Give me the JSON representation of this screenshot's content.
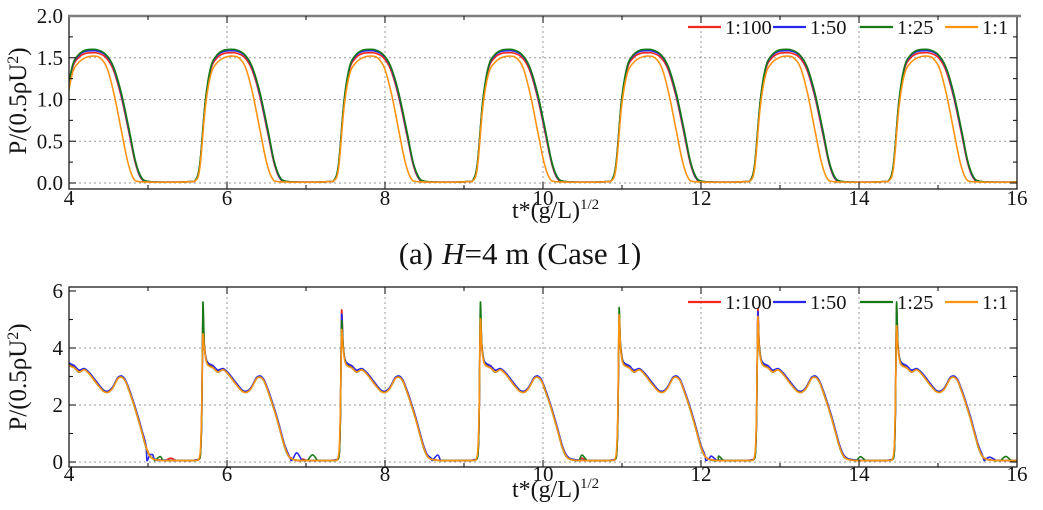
{
  "figure": {
    "caption": {
      "prefix": "(a)",
      "italic": "H",
      "suffix": "=4 m (Case 1)"
    }
  },
  "chart_data": [
    {
      "id": "top-panel",
      "type": "line",
      "title": "",
      "xlabel_base": "t*(g/L)",
      "xlabel_sup": "1/2",
      "ylabel_base": "P/(0.5ρU",
      "ylabel_sup": "2",
      "ylabel_close": ")",
      "xlim": [
        4,
        16
      ],
      "ylim": [
        0,
        2
      ],
      "x_ticks": [
        4,
        6,
        8,
        10,
        12,
        14,
        16
      ],
      "x_tick_labels": [
        "4",
        "6",
        "8",
        "10",
        "12",
        "14",
        "16"
      ],
      "y_ticks": [
        0,
        0.5,
        1,
        1.5,
        2
      ],
      "y_tick_labels": [
        "0.0",
        "0.5",
        "1.0",
        "1.5",
        "2.0"
      ],
      "x_minor_step": 1,
      "y_minor_step": 0.25,
      "grid_x": [
        6,
        8,
        10,
        12,
        14
      ],
      "grid_y": [
        0,
        0.5,
        1,
        1.5
      ],
      "grid_on": true,
      "legend_position": "top-right",
      "wave": {
        "period": 1.756,
        "t_ref": 5.695
      },
      "series": [
        {
          "name": "1:100",
          "color": "#f5261d",
          "keypoints": [
            [
              -0.105,
              0.02
            ],
            [
              -0.04,
              0.2
            ],
            [
              0.03,
              0.95
            ],
            [
              0.1,
              1.36
            ],
            [
              0.18,
              1.5
            ],
            [
              0.28,
              1.555
            ],
            [
              0.4,
              1.56
            ],
            [
              0.52,
              1.51
            ],
            [
              0.62,
              1.36
            ],
            [
              0.72,
              1.04
            ],
            [
              0.82,
              0.6
            ],
            [
              0.9,
              0.24
            ],
            [
              0.97,
              0.06
            ],
            [
              1.05,
              0.015
            ],
            [
              1.25,
              0.01
            ],
            [
              1.45,
              0.01
            ],
            [
              1.58,
              0.015
            ]
          ]
        },
        {
          "name": "1:50",
          "color": "#2727ee",
          "keypoints": [
            [
              -0.105,
              0.02
            ],
            [
              -0.04,
              0.21
            ],
            [
              0.03,
              0.97
            ],
            [
              0.1,
              1.38
            ],
            [
              0.18,
              1.525
            ],
            [
              0.28,
              1.58
            ],
            [
              0.4,
              1.585
            ],
            [
              0.52,
              1.535
            ],
            [
              0.62,
              1.39
            ],
            [
              0.72,
              1.07
            ],
            [
              0.82,
              0.63
            ],
            [
              0.9,
              0.26
            ],
            [
              0.97,
              0.07
            ],
            [
              1.05,
              0.02
            ],
            [
              1.25,
              0.01
            ],
            [
              1.45,
              0.01
            ],
            [
              1.58,
              0.015
            ]
          ]
        },
        {
          "name": "1:25",
          "color": "#157a15",
          "keypoints": [
            [
              -0.105,
              0.02
            ],
            [
              -0.04,
              0.22
            ],
            [
              0.03,
              0.98
            ],
            [
              0.1,
              1.39
            ],
            [
              0.18,
              1.535
            ],
            [
              0.28,
              1.595
            ],
            [
              0.4,
              1.6
            ],
            [
              0.52,
              1.545
            ],
            [
              0.62,
              1.4
            ],
            [
              0.72,
              1.09
            ],
            [
              0.82,
              0.65
            ],
            [
              0.9,
              0.27
            ],
            [
              0.97,
              0.08
            ],
            [
              1.05,
              0.02
            ],
            [
              1.25,
              0.01
            ],
            [
              1.45,
              0.01
            ],
            [
              1.58,
              0.015
            ]
          ]
        },
        {
          "name": "1:1",
          "color": "#ff9210",
          "keypoints": [
            [
              -0.105,
              0.02
            ],
            [
              -0.04,
              0.17
            ],
            [
              0.03,
              0.9
            ],
            [
              0.1,
              1.3
            ],
            [
              0.18,
              1.44
            ],
            [
              0.28,
              1.505
            ],
            [
              0.38,
              1.52
            ],
            [
              0.46,
              1.495
            ],
            [
              0.545,
              1.37
            ],
            [
              0.635,
              1.05
            ],
            [
              0.725,
              0.62
            ],
            [
              0.805,
              0.25
            ],
            [
              0.875,
              0.06
            ],
            [
              0.96,
              0.015
            ],
            [
              1.25,
              0.01
            ],
            [
              1.45,
              0.01
            ],
            [
              1.58,
              0.015
            ]
          ]
        }
      ]
    },
    {
      "id": "bottom-panel",
      "type": "line",
      "title": "",
      "xlabel_base": "t*(g/L)",
      "xlabel_sup": "1/2",
      "ylabel_base": "P/(0.5ρU",
      "ylabel_sup": "2",
      "ylabel_close": ")",
      "xlim": [
        4,
        16
      ],
      "ylim": [
        0,
        6
      ],
      "x_ticks": [
        4,
        6,
        8,
        10,
        12,
        14,
        16
      ],
      "x_tick_labels": [
        "4",
        "6",
        "8",
        "10",
        "12",
        "14",
        "16"
      ],
      "y_ticks": [
        0,
        2,
        4,
        6
      ],
      "y_tick_labels": [
        "0",
        "2",
        "4",
        "6"
      ],
      "x_minor_step": 1,
      "y_minor_step": 1,
      "grid_x": [
        6,
        8,
        10,
        12,
        14
      ],
      "grid_y": [
        0,
        2,
        4
      ],
      "grid_on": true,
      "legend_position": "top-right",
      "wave": {
        "period": 1.756,
        "t_ref": 5.695,
        "spike_jitter": 0.16
      },
      "series": [
        {
          "name": "1:100",
          "color": "#f5261d",
          "noise_pos": 1.35,
          "noise_amp": 0.15,
          "keypoints": [
            [
              -0.06,
              0.07
            ],
            [
              -0.03,
              0.3
            ],
            [
              -0.014,
              1.8
            ],
            [
              0.0,
              5.05
            ],
            [
              0.018,
              4.15
            ],
            [
              0.045,
              3.55
            ],
            [
              0.08,
              3.4
            ],
            [
              0.13,
              3.33
            ],
            [
              0.19,
              3.18
            ],
            [
              0.255,
              3.26
            ],
            [
              0.33,
              3.07
            ],
            [
              0.42,
              2.75
            ],
            [
              0.5,
              2.5
            ],
            [
              0.55,
              2.46
            ],
            [
              0.61,
              2.6
            ],
            [
              0.68,
              2.95
            ],
            [
              0.725,
              3.0
            ],
            [
              0.775,
              2.85
            ],
            [
              0.83,
              2.45
            ],
            [
              0.885,
              2.0
            ],
            [
              0.935,
              1.55
            ],
            [
              0.985,
              1.05
            ],
            [
              1.035,
              0.55
            ],
            [
              1.085,
              0.22
            ],
            [
              1.14,
              0.1
            ],
            [
              1.25,
              0.06
            ],
            [
              1.45,
              0.05
            ],
            [
              1.6,
              0.05
            ],
            [
              1.68,
              0.07
            ]
          ]
        },
        {
          "name": "1:50",
          "color": "#2727ee",
          "noise_pos": 1.15,
          "noise_amp": 0.28,
          "keypoints": [
            [
              -0.06,
              0.08
            ],
            [
              -0.03,
              0.32
            ],
            [
              -0.014,
              1.75
            ],
            [
              0.0,
              4.92
            ],
            [
              0.018,
              4.05
            ],
            [
              0.045,
              3.58
            ],
            [
              0.08,
              3.45
            ],
            [
              0.13,
              3.38
            ],
            [
              0.19,
              3.22
            ],
            [
              0.255,
              3.28
            ],
            [
              0.33,
              3.1
            ],
            [
              0.42,
              2.78
            ],
            [
              0.5,
              2.52
            ],
            [
              0.55,
              2.48
            ],
            [
              0.61,
              2.62
            ],
            [
              0.68,
              2.97
            ],
            [
              0.725,
              3.02
            ],
            [
              0.775,
              2.88
            ],
            [
              0.83,
              2.5
            ],
            [
              0.885,
              2.05
            ],
            [
              0.935,
              1.6
            ],
            [
              0.985,
              1.1
            ],
            [
              1.035,
              0.6
            ],
            [
              1.085,
              0.26
            ],
            [
              1.14,
              0.12
            ],
            [
              1.25,
              0.07
            ],
            [
              1.45,
              0.05
            ],
            [
              1.6,
              0.05
            ],
            [
              1.68,
              0.08
            ]
          ]
        },
        {
          "name": "1:25",
          "color": "#157a15",
          "noise_pos": 1.3,
          "noise_amp": 0.3,
          "keypoints": [
            [
              -0.06,
              0.07
            ],
            [
              -0.03,
              0.28
            ],
            [
              -0.014,
              1.85
            ],
            [
              0.0,
              5.28
            ],
            [
              0.018,
              4.1
            ],
            [
              0.045,
              3.52
            ],
            [
              0.08,
              3.38
            ],
            [
              0.13,
              3.3
            ],
            [
              0.19,
              3.15
            ],
            [
              0.255,
              3.24
            ],
            [
              0.33,
              3.05
            ],
            [
              0.42,
              2.72
            ],
            [
              0.5,
              2.48
            ],
            [
              0.55,
              2.44
            ],
            [
              0.61,
              2.58
            ],
            [
              0.68,
              2.93
            ],
            [
              0.725,
              2.98
            ],
            [
              0.775,
              2.83
            ],
            [
              0.83,
              2.43
            ],
            [
              0.885,
              1.98
            ],
            [
              0.935,
              1.52
            ],
            [
              0.985,
              1.02
            ],
            [
              1.035,
              0.52
            ],
            [
              1.085,
              0.2
            ],
            [
              1.14,
              0.09
            ],
            [
              1.25,
              0.05
            ],
            [
              1.45,
              0.05
            ],
            [
              1.6,
              0.05
            ],
            [
              1.68,
              0.06
            ]
          ]
        },
        {
          "name": "1:1",
          "color": "#ff9210",
          "noise_pos": 1.2,
          "noise_amp": 0.05,
          "keypoints": [
            [
              -0.06,
              0.06
            ],
            [
              -0.032,
              0.4
            ],
            [
              -0.015,
              1.9
            ],
            [
              0.0,
              4.78
            ],
            [
              0.018,
              4.0
            ],
            [
              0.045,
              3.5
            ],
            [
              0.08,
              3.36
            ],
            [
              0.13,
              3.3
            ],
            [
              0.19,
              3.16
            ],
            [
              0.255,
              3.24
            ],
            [
              0.33,
              3.05
            ],
            [
              0.42,
              2.72
            ],
            [
              0.5,
              2.47
            ],
            [
              0.55,
              2.44
            ],
            [
              0.61,
              2.58
            ],
            [
              0.68,
              2.93
            ],
            [
              0.725,
              2.98
            ],
            [
              0.775,
              2.84
            ],
            [
              0.83,
              2.44
            ],
            [
              0.885,
              1.99
            ],
            [
              0.935,
              1.53
            ],
            [
              0.985,
              1.03
            ],
            [
              1.035,
              0.54
            ],
            [
              1.085,
              0.21
            ],
            [
              1.14,
              0.09
            ],
            [
              1.25,
              0.05
            ],
            [
              1.45,
              0.05
            ],
            [
              1.6,
              0.05
            ],
            [
              1.68,
              0.06
            ]
          ]
        }
      ]
    }
  ]
}
